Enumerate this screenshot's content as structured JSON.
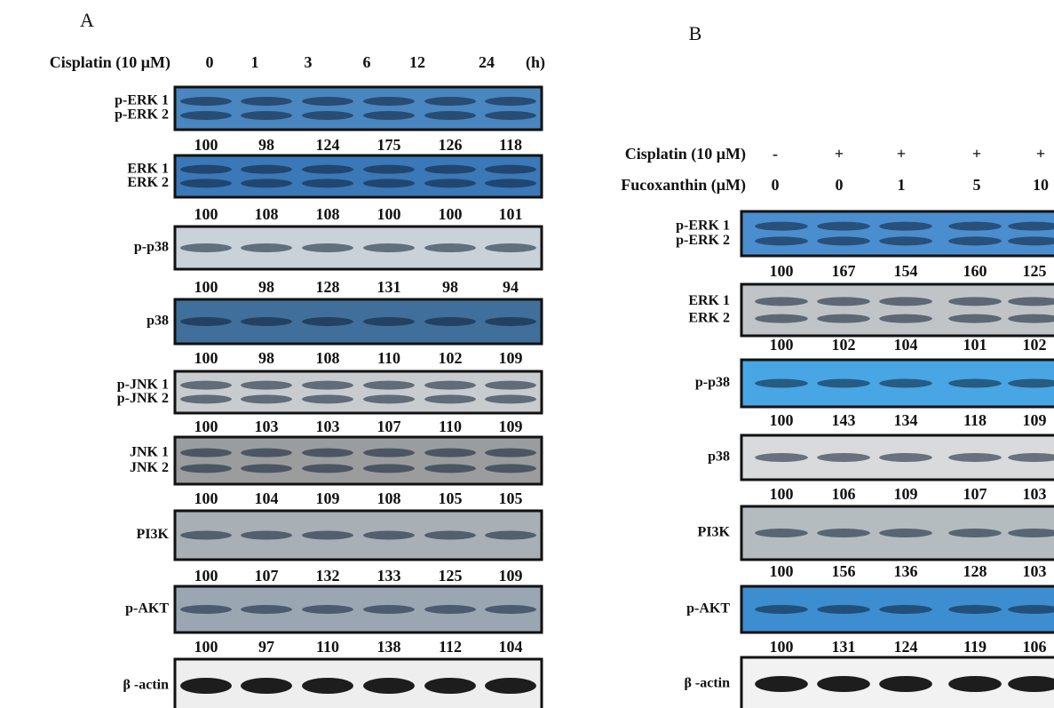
{
  "panels": [
    {
      "label": "A",
      "header": [
        {
          "label": "Cisplatin (10 μM)",
          "lanes": [
            "0",
            "1",
            "3",
            "6",
            "12",
            "24"
          ],
          "unit": "(h)"
        }
      ],
      "blots": [
        {
          "label": [
            "p-ERK 1",
            "p-ERK 2"
          ],
          "quant": [
            100,
            98,
            124,
            175,
            126,
            118
          ]
        },
        {
          "label": [
            "ERK 1",
            "ERK 2"
          ],
          "quant": [
            100,
            108,
            108,
            100,
            100,
            101
          ]
        },
        {
          "label": [
            "p-p38"
          ],
          "quant": [
            100,
            98,
            128,
            131,
            98,
            94
          ]
        },
        {
          "label": [
            "p38"
          ],
          "quant": [
            100,
            98,
            108,
            110,
            102,
            109
          ]
        },
        {
          "label": [
            "p-JNK 1",
            "p-JNK 2"
          ],
          "quant": [
            100,
            103,
            103,
            107,
            110,
            109
          ]
        },
        {
          "label": [
            "JNK 1",
            "JNK 2"
          ],
          "quant": [
            100,
            104,
            109,
            108,
            105,
            105
          ]
        },
        {
          "label": [
            "PI3K"
          ],
          "quant": [
            100,
            107,
            132,
            133,
            125,
            109
          ]
        },
        {
          "label": [
            "p-AKT"
          ],
          "quant": [
            100,
            97,
            110,
            138,
            112,
            104
          ]
        },
        {
          "label": [
            "β -actin"
          ]
        }
      ]
    },
    {
      "label": "B",
      "header": [
        {
          "label": "Cisplatin (10 μM)",
          "lanes": [
            "-",
            "+",
            "+",
            "+",
            "+"
          ]
        },
        {
          "label": "Fucoxanthin (μM)",
          "lanes": [
            "0",
            "0",
            "1",
            "5",
            "10"
          ]
        }
      ],
      "blots": [
        {
          "label": [
            "p-ERK 1",
            "p-ERK 2"
          ],
          "quant": [
            100,
            167,
            154,
            160,
            125
          ]
        },
        {
          "label": [
            "ERK 1",
            "ERK 2"
          ],
          "quant": [
            100,
            102,
            104,
            101,
            102
          ]
        },
        {
          "label": [
            "p-p38"
          ],
          "quant": [
            100,
            143,
            134,
            118,
            109
          ]
        },
        {
          "label": [
            "p38"
          ],
          "quant": [
            100,
            106,
            109,
            107,
            103
          ]
        },
        {
          "label": [
            "PI3K"
          ],
          "quant": [
            100,
            156,
            136,
            128,
            103
          ]
        },
        {
          "label": [
            "p-AKT"
          ],
          "quant": [
            100,
            131,
            124,
            119,
            106
          ]
        },
        {
          "label": [
            "β -actin"
          ]
        }
      ]
    }
  ]
}
